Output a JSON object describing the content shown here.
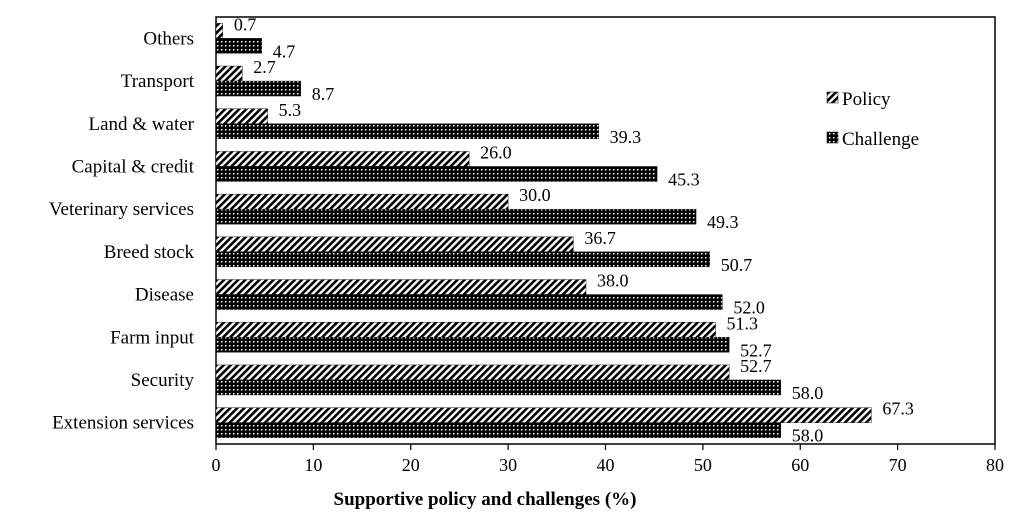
{
  "chart_data": {
    "type": "bar",
    "orientation": "horizontal",
    "categories": [
      "Others",
      "Transport",
      "Land & water",
      "Capital & credit",
      "Veterinary services",
      "Breed stock",
      "Disease",
      "Farm input",
      "Security",
      "Extension services"
    ],
    "series": [
      {
        "name": "Policy",
        "values": [
          0.7,
          2.7,
          5.3,
          26.0,
          30.0,
          36.7,
          38.0,
          51.3,
          52.7,
          67.3
        ],
        "labels": [
          "0.7",
          "2.7",
          "5.3",
          "26.0",
          "30.0",
          "36.7",
          "38.0",
          "51.3",
          "52.7",
          "67.3"
        ],
        "pattern": "diagonal-hatch"
      },
      {
        "name": "Challenge",
        "values": [
          4.7,
          8.7,
          39.3,
          45.3,
          49.3,
          50.7,
          52.0,
          52.7,
          58.0,
          58.0
        ],
        "labels": [
          "4.7",
          "8.7",
          "39.3",
          "45.3",
          "49.3",
          "50.7",
          "52.0",
          "52.7",
          "58.0",
          "58.0"
        ],
        "pattern": "dark-checker"
      }
    ],
    "xlabel": "Supportive policy and challenges (%)",
    "ylabel": "",
    "xlim": [
      0,
      80
    ],
    "xticks": [
      "0",
      "10",
      "20",
      "30",
      "40",
      "50",
      "60",
      "70",
      "80"
    ],
    "grid": false,
    "legend_position": "right"
  }
}
